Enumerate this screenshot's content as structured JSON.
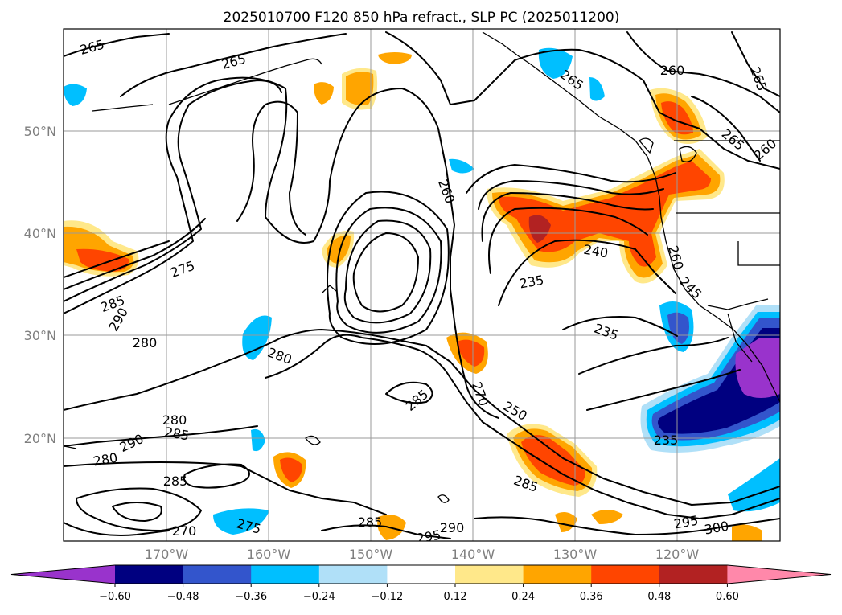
{
  "title": "2025010700 F120 850 hPa refract., SLP PC (2025011200)",
  "longitude_labels": [
    "170°W",
    "160°W",
    "150°W",
    "140°W",
    "130°W",
    "120°W"
  ],
  "latitude_labels": [
    "50°N",
    "40°N",
    "30°N",
    "20°N"
  ],
  "colorbar": {
    "tick_labels": [
      "−0.60",
      "−0.48",
      "−0.36",
      "−0.24",
      "−0.12",
      "0.12",
      "0.24",
      "0.36",
      "0.48",
      "0.60"
    ],
    "colors": [
      "#9933cc",
      "#000080",
      "#3355cc",
      "#00bfff",
      "#b0e0f8",
      "#ffffff",
      "#ffe88a",
      "#ffa500",
      "#ff4500",
      "#b22222",
      "#ff88aa"
    ]
  },
  "contour_labels": [
    "265",
    "265",
    "265",
    "265",
    "260",
    "260",
    "260",
    "265",
    "275",
    "285",
    "290",
    "280",
    "280",
    "260",
    "240",
    "235",
    "235",
    "245",
    "235",
    "285",
    "270",
    "250",
    "285",
    "235",
    "280",
    "290",
    "285",
    "280",
    "285",
    "270",
    "275",
    "285",
    "295",
    "290",
    "295",
    "300"
  ]
}
